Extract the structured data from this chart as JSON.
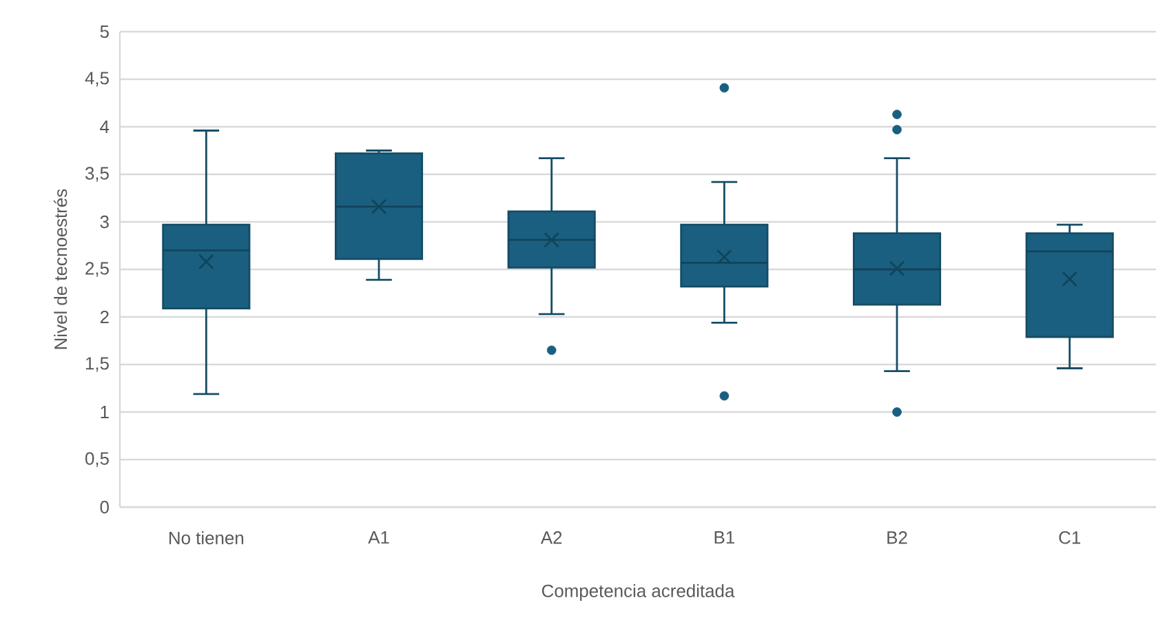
{
  "chart_data": {
    "type": "box",
    "xlabel": "Competencia acreditada",
    "ylabel": "Nivel de tecnoestrés",
    "categories": [
      "No tienen",
      "A1",
      "A2",
      "B1",
      "B2",
      "C1"
    ],
    "color": "#1a5f80",
    "boxes": [
      {
        "low": 1.19,
        "q1": 2.09,
        "median": 2.7,
        "q3": 2.97,
        "high": 3.96,
        "mean": 2.58
      },
      {
        "low": 2.39,
        "q1": 2.61,
        "median": 3.16,
        "q3": 3.72,
        "high": 3.75,
        "mean": 3.16
      },
      {
        "low": 2.03,
        "q1": 2.52,
        "median": 2.81,
        "q3": 3.11,
        "high": 3.67,
        "mean": 2.81,
        "outliers": [
          1.65
        ]
      },
      {
        "low": 1.94,
        "q1": 2.32,
        "median": 2.57,
        "q3": 2.97,
        "high": 3.42,
        "mean": 2.63,
        "outliers": [
          4.41,
          1.17
        ]
      },
      {
        "low": 1.43,
        "q1": 2.13,
        "median": 2.5,
        "q3": 2.88,
        "high": 3.67,
        "mean": 2.51,
        "outliers": [
          4.13,
          3.97,
          1.0
        ]
      },
      {
        "low": 1.46,
        "q1": 1.79,
        "median": 2.69,
        "q3": 2.88,
        "high": 2.97,
        "mean": 2.4
      }
    ],
    "ylim": [
      0,
      5
    ],
    "yticks": [
      0,
      {
        "value": 0.5,
        "label": "0,5"
      },
      1,
      {
        "value": 1.5,
        "label": "1,5"
      },
      2,
      {
        "value": 2.5,
        "label": "2,5"
      },
      3,
      {
        "value": 3.5,
        "label": "3,5"
      },
      4,
      {
        "value": 4.5,
        "label": "4,5"
      },
      5
    ],
    "grid": "y"
  }
}
